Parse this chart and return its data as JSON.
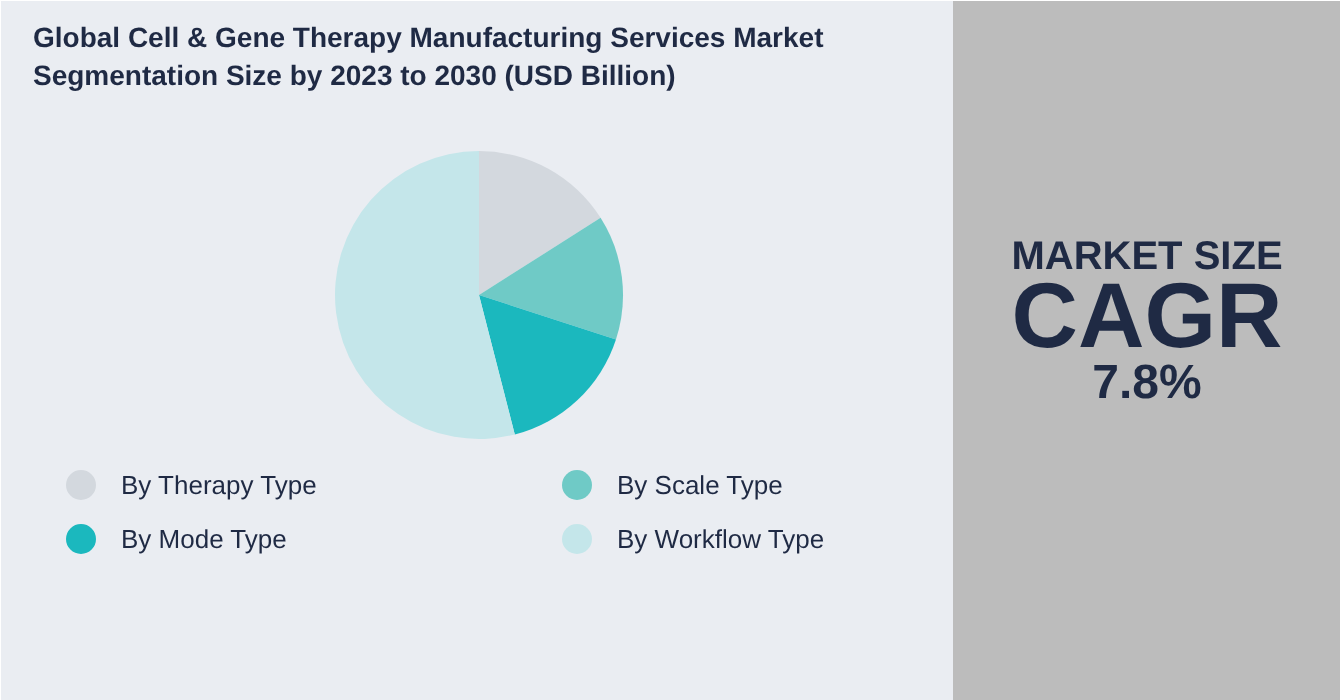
{
  "chart_data": {
    "type": "pie",
    "title": "Global Cell & Gene Therapy Manufacturing Services Market\nSegmentation Size by 2023 to 2030 (USD Billion)",
    "categories": [
      "By Therapy Type",
      "By Scale Type",
      "By Mode Type",
      "By Workflow Type"
    ],
    "values": [
      16,
      14,
      16,
      54
    ],
    "colors": [
      "#d3d8de",
      "#6fcac6",
      "#1bb8be",
      "#c4e6ea"
    ],
    "legend": "bottom",
    "annotations": [
      "MARKET SIZE",
      "CAGR",
      "7.8%"
    ]
  }
}
